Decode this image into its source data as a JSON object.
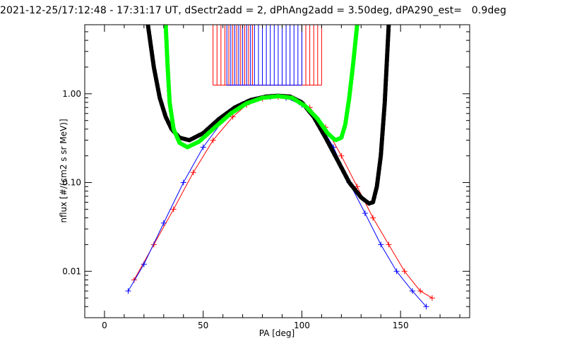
{
  "window": {
    "title": "2021-12-25/17:12:48 - 17:31:17 UT, dSectr2add = 2, dPhAng2add = 3.50deg, dPA290_est=   0.9deg"
  },
  "colors": {
    "background": "#ffffff",
    "axis": "#000000",
    "series_red": "#ff0000",
    "series_blue": "#0000ff",
    "fit_black": "#000000",
    "fit_green": "#00ff00"
  },
  "chart_data": {
    "type": "line",
    "title": "2021-12-25/17:12:48 - 17:31:17 UT, dSectr2add = 2, dPhAng2add = 3.50deg, dPA290_est=   0.9deg",
    "xlabel": "PA [deg]",
    "ylabel": "nflux [#/(cm2 s sr MeV)]",
    "xlim": [
      -10,
      185
    ],
    "ylim": [
      0.003,
      6
    ],
    "yscale": "log",
    "grid": false,
    "legend": "none",
    "x_ticks": [
      {
        "value": 0,
        "label": "0"
      },
      {
        "value": 50,
        "label": "50"
      },
      {
        "value": 100,
        "label": "100"
      },
      {
        "value": 150,
        "label": "150"
      }
    ],
    "y_ticks": [
      {
        "value": 0.01,
        "label": "0.01"
      },
      {
        "value": 0.1,
        "label": "0.10"
      },
      {
        "value": 1,
        "label": "1.00"
      }
    ],
    "series": [
      {
        "color": "red",
        "style": "line-plus",
        "x": [
          15,
          25,
          35,
          45,
          55,
          65,
          72,
          80,
          88,
          96,
          104,
          112,
          120,
          128,
          136,
          144,
          152,
          160,
          166
        ],
        "values": [
          0.008,
          0.02,
          0.05,
          0.13,
          0.3,
          0.55,
          0.75,
          0.88,
          0.92,
          0.88,
          0.7,
          0.42,
          0.2,
          0.09,
          0.04,
          0.02,
          0.01,
          0.006,
          0.005
        ]
      },
      {
        "color": "blue",
        "style": "line-plus",
        "x": [
          12,
          20,
          30,
          40,
          50,
          60,
          68,
          76,
          84,
          92,
          100,
          108,
          116,
          124,
          132,
          140,
          148,
          156,
          163
        ],
        "values": [
          0.006,
          0.012,
          0.035,
          0.1,
          0.25,
          0.5,
          0.7,
          0.85,
          0.92,
          0.9,
          0.75,
          0.5,
          0.25,
          0.1,
          0.045,
          0.02,
          0.01,
          0.006,
          0.004
        ]
      },
      {
        "color": "black",
        "style": "thick-dashed",
        "x": [
          22,
          25,
          28,
          31,
          34,
          38,
          43,
          50,
          58,
          66,
          74,
          82,
          88,
          94,
          100,
          106,
          112,
          118,
          124,
          130,
          134,
          136,
          138,
          140,
          142,
          144
        ],
        "values": [
          6,
          2,
          0.9,
          0.55,
          0.4,
          0.32,
          0.3,
          0.36,
          0.52,
          0.7,
          0.85,
          0.93,
          0.95,
          0.93,
          0.8,
          0.55,
          0.32,
          0.18,
          0.1,
          0.068,
          0.058,
          0.06,
          0.09,
          0.2,
          0.8,
          6
        ]
      },
      {
        "color": "green",
        "style": "thick-dashed",
        "x": [
          31,
          32,
          33,
          35,
          38,
          42,
          48,
          56,
          64,
          72,
          80,
          88,
          95,
          102,
          108,
          113,
          117,
          120,
          122,
          124,
          126,
          128
        ],
        "values": [
          6,
          2,
          0.8,
          0.4,
          0.28,
          0.25,
          0.29,
          0.42,
          0.6,
          0.78,
          0.9,
          0.94,
          0.9,
          0.72,
          0.52,
          0.36,
          0.3,
          0.32,
          0.45,
          0.9,
          2.2,
          6
        ]
      },
      {
        "color": "red",
        "style": "vertical-lines",
        "x": [
          55,
          57,
          59,
          61,
          63,
          65,
          67,
          69,
          71,
          73,
          75,
          100,
          102,
          104,
          106,
          108,
          110
        ],
        "values": [
          1.25,
          1.25,
          1.25,
          1.25,
          1.25,
          1.25,
          1.25,
          1.25,
          1.25,
          1.25,
          1.25,
          1.25,
          1.25,
          1.25,
          1.25,
          1.25,
          1.25
        ]
      },
      {
        "color": "blue",
        "style": "vertical-lines",
        "x": [
          62,
          64,
          66,
          68,
          70,
          72,
          74,
          76,
          78,
          80,
          82,
          84,
          86,
          88,
          90,
          92,
          94,
          96,
          98,
          100
        ],
        "values": [
          1.25,
          1.25,
          1.25,
          1.25,
          1.25,
          1.25,
          1.25,
          1.25,
          1.25,
          1.25,
          1.25,
          1.25,
          1.25,
          1.25,
          1.25,
          1.25,
          1.25,
          1.25,
          1.25,
          1.25
        ]
      }
    ]
  }
}
